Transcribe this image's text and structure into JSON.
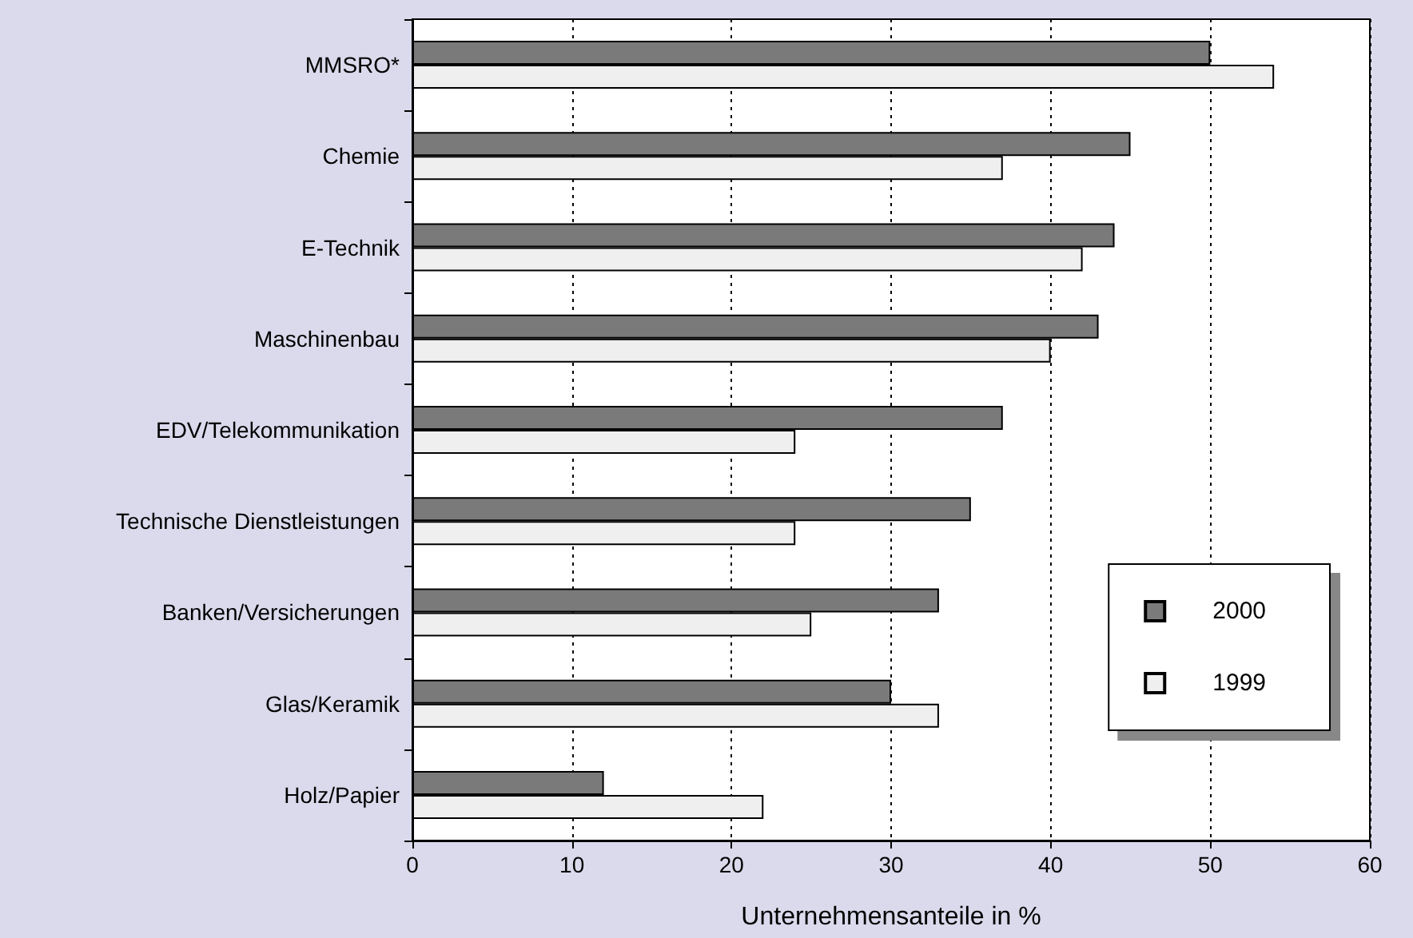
{
  "chart_data": {
    "type": "bar",
    "orientation": "horizontal",
    "xlabel": "Unternehmensanteile in %",
    "categories": [
      "MMSRO*",
      "Chemie",
      "E-Technik",
      "Maschinenbau",
      "EDV/Telekommunikation",
      "Technische Dienstleistungen",
      "Banken/Versicherungen",
      "Glas/Keramik",
      "Holz/Papier"
    ],
    "series": [
      {
        "name": "2000",
        "color": "#7a7a7a",
        "values": [
          50,
          45,
          44,
          43,
          37,
          35,
          33,
          30,
          12
        ]
      },
      {
        "name": "1999",
        "color": "#efefef",
        "values": [
          54,
          37,
          42,
          40,
          24,
          24,
          25,
          33,
          22
        ]
      }
    ],
    "xlim": [
      0,
      60
    ],
    "xticks": [
      0,
      10,
      20,
      30,
      40,
      50,
      60
    ],
    "grid": "x",
    "legend": "bottom right"
  }
}
